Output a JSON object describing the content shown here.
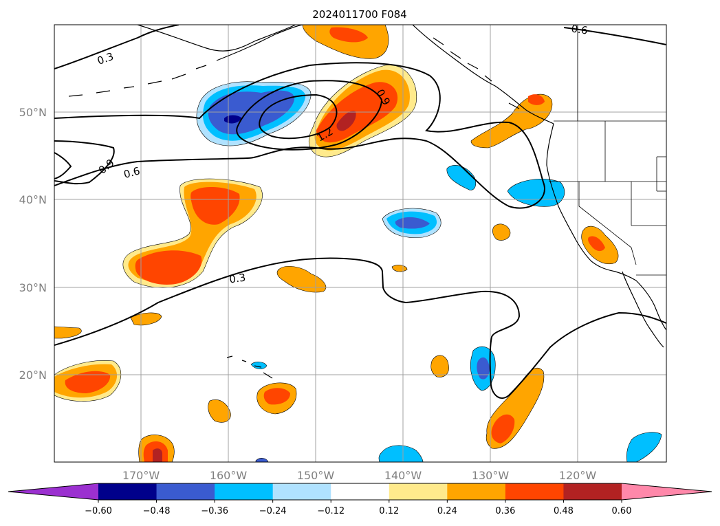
{
  "title": "2024011700 F084",
  "lat_labels": [
    "50°N",
    "40°N",
    "30°N",
    "20°N"
  ],
  "lon_labels": [
    "170°W",
    "160°W",
    "150°W",
    "140°W",
    "130°W",
    "120°W"
  ],
  "colorbar": {
    "ticks": [
      "−0.60",
      "−0.48",
      "−0.36",
      "−0.24",
      "−0.12",
      "0.12",
      "0.24",
      "0.36",
      "0.48",
      "0.60"
    ],
    "colors": [
      "#9b30d0",
      "#00008b",
      "#3a5bd0",
      "#00bfff",
      "#b0e2ff",
      "#ffffff",
      "#ffea8c",
      "#ffa500",
      "#ff4500",
      "#b22222",
      "#ff88aa"
    ]
  },
  "contour_labels": [
    "0.3",
    "0.6",
    "0.9",
    "1.2",
    "0.9",
    "0.6",
    "0.3"
  ],
  "colors": {
    "lightblue": "#b0e2ff",
    "blue": "#00bfff",
    "medblue": "#3a5bd0",
    "navy": "#00008b",
    "yellow": "#ffea8c",
    "orange": "#ffa500",
    "red": "#ff4500",
    "darkred": "#b22222"
  }
}
